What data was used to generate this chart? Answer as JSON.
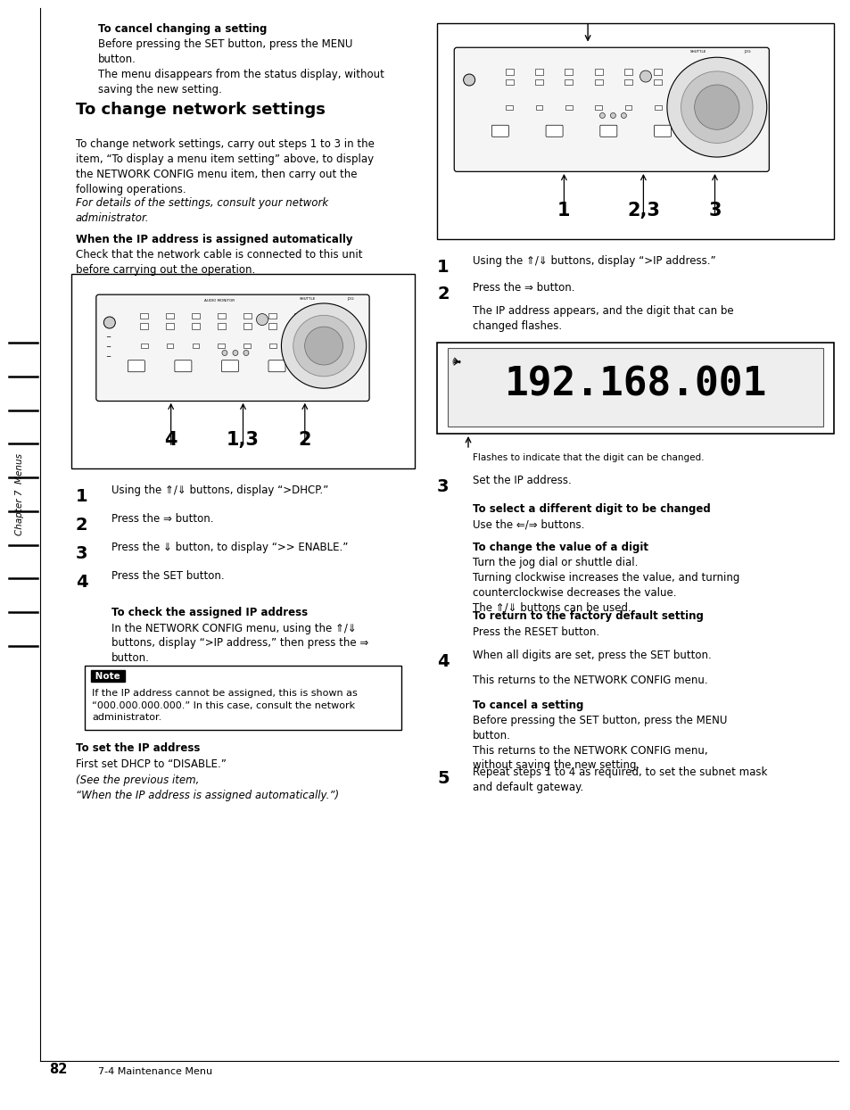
{
  "bg_color": "#ffffff",
  "page_width": 9.54,
  "page_height": 12.44,
  "text_color": "#000000",
  "sidebar_text": "Chapter 7  Menus",
  "page_number": "82",
  "page_label": "7-4 Maintenance Menu",
  "cancel_heading": "To cancel changing a setting",
  "cancel_body": "Before pressing the SET button, press the MENU\nbutton.\nThe menu disappears from the status display, without\nsaving the new setting.",
  "section_heading": "To change network settings",
  "section_intro": "To change network settings, carry out steps 1 to 3 in the\nitem, “To display a menu item setting” above, to display\nthe NETWORK CONFIG menu item, then carry out the\nfollowing operations.",
  "section_note": "For details of the settings, consult your network\nadministrator.",
  "when_heading": "When the IP address is assigned automatically",
  "when_body": "Check that the network cable is connected to this unit\nbefore carrying out the operation.",
  "steps_left": [
    {
      "num": "1",
      "text": "Using the ⇑/⇓ buttons, display “>DHCP.”"
    },
    {
      "num": "2",
      "text": "Press the ⇒ button."
    },
    {
      "num": "3",
      "text": "Press the ⇓ button, to display “>> ENABLE.”"
    },
    {
      "num": "4",
      "text": "Press the SET button."
    }
  ],
  "check_heading": "To check the assigned IP address",
  "check_body": "In the NETWORK CONFIG menu, using the ⇑/⇓\nbuttons, display “>IP address,” then press the ⇒\nbutton.",
  "note_label": "Note",
  "note_body": "If the IP address cannot be assigned, this is shown as\n“000.000.000.000.” In this case, consult the network\nadministrator.",
  "set_ip_heading": "To set the IP address",
  "set_ip_body_plain": "First set DHCP to “DISABLE.” ",
  "set_ip_body_italic": "(See the previous item,\n“When the IP address is assigned automatically.”)",
  "right_step1": "Using the ⇑/⇓ buttons, display “>IP address.”",
  "right_step2": "Press the ⇒ button.",
  "right_step2b": "The IP address appears, and the digit that can be\nchanged flashes.",
  "step3_right_num": "3",
  "step3_right_text": "Set the IP address.",
  "digit_heading": "To select a different digit to be changed",
  "digit_body": "Use the ⇐/⇒ buttons.",
  "change_heading": "To change the value of a digit",
  "change_body": "Turn the jog dial or shuttle dial.\nTurning clockwise increases the value, and turning\ncounterclockwise decreases the value.\nThe ⇑/⇓ buttons can be used.",
  "factory_heading": "To return to the factory default setting",
  "factory_body": "Press the RESET button.",
  "step4_right_num": "4",
  "step4_right_text": "When all digits are set, press the SET button.",
  "step4_right_body": "This returns to the NETWORK CONFIG menu.",
  "cancel2_heading": "To cancel a setting",
  "cancel2_body": "Before pressing the SET button, press the MENU\nbutton.\nThis returns to the NETWORK CONFIG menu,\nwithout saving the new setting.",
  "step5_right_num": "5",
  "step5_right_text": "Repeat steps 1 to 4 as required, to set the subnet mask\nand default gateway."
}
